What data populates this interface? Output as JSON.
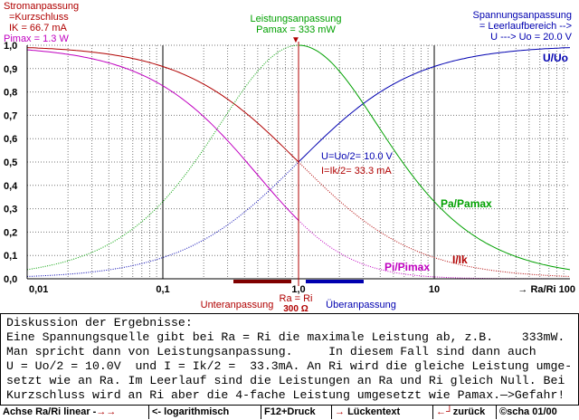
{
  "labels": {
    "strom_title": "Stromanpassung",
    "strom_sub": "=Kurzschluss",
    "ik": "IK =  66.7 mA",
    "pimax": "Pimax =  1.3 W",
    "leistung_title": "Leistungsanpassung",
    "pamax": "Pamax = 333 mW",
    "spannung_title": "Spannungsanpassung",
    "spannung_sub": "= Leerlaufbereich -->",
    "u_uo_range": "U ---> Uo = 20.0 V",
    "u_half": "U=Uo/2= 10.0 V",
    "i_half": "I=Ik/2= 33.3 mA",
    "unter": "Unteranpassung",
    "ueber": "Überanpassung",
    "ra_ri": "Ra = Ri",
    "ohm": "300 Ω",
    "x_axis": "→  Ra/Ri 100"
  },
  "chart_data": {
    "type": "line",
    "x_scale": "log",
    "xlim": [
      0.01,
      100
    ],
    "ylim": [
      0,
      1.0
    ],
    "xlabel": "Ra/Ri",
    "x_ticks": [
      "0,01",
      "0,1",
      "1,0",
      "10"
    ],
    "y_ticks": [
      "0,0",
      "0,1",
      "0,2",
      "0,3",
      "0,4",
      "0,5",
      "0,6",
      "0,7",
      "0,8",
      "0,9",
      "1,0"
    ],
    "grid": true,
    "series": [
      {
        "name": "U/Uo",
        "color": "#0000b0",
        "x": [
          0.01,
          0.1,
          1.0,
          10,
          100
        ],
        "y": [
          0.0099,
          0.0909,
          0.5,
          0.9091,
          0.9901
        ]
      },
      {
        "name": "I/Ik",
        "color": "#b00000",
        "x": [
          0.01,
          0.1,
          1.0,
          10,
          100
        ],
        "y": [
          0.9901,
          0.9091,
          0.5,
          0.0909,
          0.0099
        ]
      },
      {
        "name": "Pa/Pamax",
        "color": "#00a000",
        "x": [
          0.01,
          0.1,
          1.0,
          10,
          100
        ],
        "y": [
          0.0392,
          0.3306,
          1.0,
          0.3306,
          0.0392
        ]
      },
      {
        "name": "Pi/Pimax",
        "color": "#c000c0",
        "x": [
          0.01,
          0.1,
          1.0,
          10,
          100
        ],
        "y": [
          0.9803,
          0.8264,
          0.25,
          0.0083,
          0.0001
        ]
      }
    ]
  },
  "text": {
    "lines": [
      "Diskussion der Ergebnisse:",
      "Eine Spannungsquelle gibt bei Ra = Ri die maximale Leistung ab, z.B.    333mW.",
      "Man spricht dann von Leistungsanpassung.     In diesem Fall sind dann auch",
      "U = Uo/2 = 10.0V  und I = Ik/2 =  33.3mA. An Ri wird die gleiche Leistung umge-",
      "setzt wie an Ra. Im Leerlauf sind die Leistungen an Ra und Ri gleich Null. Bei",
      "Kurzschluss wird an Ri aber die 4-fache Leistung umgesetzt wie Pamax.—>Gefahr!"
    ]
  },
  "status": {
    "b1": "Achse Ra/Ri linear -",
    "b1k": "→",
    "b2k": "→",
    "b2": " <- logarithmisch",
    "b3": "F12+Druck",
    "b4k": "→",
    "b4": "Lückentext",
    "b5k": "←┘",
    "b5": "zurück",
    "b6": "©scha 01/00"
  }
}
